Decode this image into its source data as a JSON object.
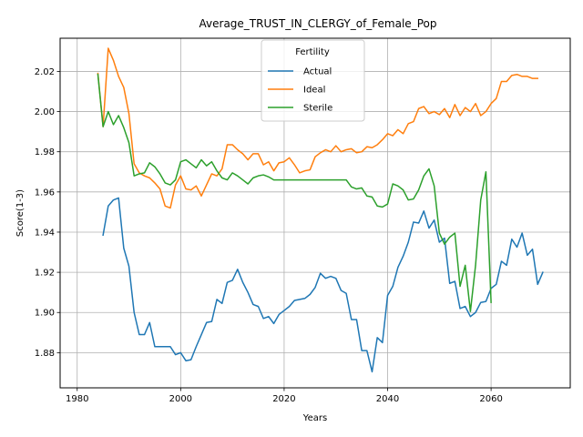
{
  "chart_data": {
    "type": "line",
    "title": "Average_TRUST_IN_CLERGY_of_Female_Pop",
    "xlabel": "Years",
    "ylabel": "Score(1-3)",
    "xlim": [
      1976.7,
      2075.3
    ],
    "ylim": [
      1.8625,
      2.0365
    ],
    "xticks": [
      1980,
      2000,
      2020,
      2040,
      2060
    ],
    "yticks": [
      1.88,
      1.9,
      1.92,
      1.94,
      1.96,
      1.98,
      2.0,
      2.02
    ],
    "ytick_labels": [
      "1.88",
      "1.90",
      "1.92",
      "1.94",
      "1.96",
      "1.98",
      "2.00",
      "2.02"
    ],
    "grid": true,
    "legend": {
      "title": "Fertility",
      "placement": "upper-center"
    },
    "series": [
      {
        "name": "Actual",
        "color": "#1f77b4",
        "start_year": 1985,
        "values": [
          1.9385,
          1.953,
          1.956,
          1.957,
          1.932,
          1.923,
          1.9,
          1.889,
          1.889,
          1.895,
          1.883,
          1.883,
          1.883,
          1.883,
          1.879,
          1.88,
          1.876,
          1.8765,
          1.883,
          1.889,
          1.895,
          1.8955,
          1.9065,
          1.9045,
          1.915,
          1.916,
          1.9215,
          1.915,
          1.91,
          1.904,
          1.903,
          1.897,
          1.898,
          1.8945,
          1.899,
          1.901,
          1.903,
          1.906,
          1.9065,
          1.907,
          1.909,
          1.9125,
          1.9195,
          1.917,
          1.918,
          1.917,
          1.911,
          1.9095,
          1.8965,
          1.8965,
          1.881,
          1.881,
          1.8705,
          1.8875,
          1.885,
          1.9085,
          1.913,
          1.9225,
          1.928,
          1.935,
          1.945,
          1.9445,
          1.9505,
          1.942,
          1.946,
          1.935,
          1.937,
          1.9145,
          1.9155,
          1.902,
          1.903,
          1.898,
          1.9,
          1.905,
          1.9055,
          1.912,
          1.914,
          1.9255,
          1.9235,
          1.9365,
          1.9325,
          1.9395,
          1.9285,
          1.9315,
          1.914,
          1.92
        ]
      },
      {
        "name": "Ideal",
        "color": "#ff7f0e",
        "start_year": 1984,
        "values": [
          2.019,
          1.9925,
          2.0315,
          2.0255,
          2.0175,
          2.012,
          1.999,
          1.974,
          1.9695,
          1.968,
          1.967,
          1.9645,
          1.9615,
          1.953,
          1.952,
          1.9635,
          1.968,
          1.9615,
          1.961,
          1.963,
          1.958,
          1.9635,
          1.969,
          1.968,
          1.9715,
          1.9835,
          1.9835,
          1.981,
          1.979,
          1.976,
          1.979,
          1.979,
          1.9735,
          1.975,
          1.9705,
          1.9745,
          1.975,
          1.977,
          1.9735,
          1.9695,
          1.9705,
          1.971,
          1.9775,
          1.9795,
          1.981,
          1.98,
          1.983,
          1.98,
          1.981,
          1.9815,
          1.9795,
          1.98,
          1.9825,
          1.982,
          1.9835,
          1.986,
          1.989,
          1.988,
          1.991,
          1.989,
          1.994,
          1.995,
          2.0015,
          2.0025,
          1.999,
          2.0,
          1.9985,
          2.0015,
          1.997,
          2.0035,
          1.998,
          2.002,
          2.0,
          2.004,
          1.998,
          2.0,
          2.004,
          2.0065,
          2.015,
          2.015,
          2.018,
          2.0185,
          2.0175,
          2.0175,
          2.0165,
          2.0165
        ]
      },
      {
        "name": "Sterile",
        "color": "#2ca02c",
        "start_year": 1984,
        "values": [
          2.0185,
          1.9925,
          2.0,
          1.9935,
          1.998,
          1.992,
          1.9845,
          1.968,
          1.969,
          1.9695,
          1.9745,
          1.9725,
          1.969,
          1.9645,
          1.9635,
          1.966,
          1.975,
          1.976,
          1.974,
          1.972,
          1.976,
          1.973,
          1.975,
          1.9705,
          1.967,
          1.966,
          1.9695,
          1.968,
          1.966,
          1.964,
          1.967,
          1.968,
          1.9685,
          1.9675,
          1.966,
          1.966,
          1.966,
          1.966,
          1.966,
          1.966,
          1.966,
          1.966,
          1.966,
          1.966,
          1.966,
          1.966,
          1.966,
          1.966,
          1.966,
          1.9625,
          1.9615,
          1.962,
          1.958,
          1.9575,
          1.953,
          1.9525,
          1.954,
          1.964,
          1.963,
          1.961,
          1.956,
          1.9565,
          1.961,
          1.968,
          1.9715,
          1.963,
          1.9395,
          1.934,
          1.9375,
          1.9395,
          1.913,
          1.9235,
          1.9005,
          1.9235,
          1.956,
          1.97,
          1.905
        ]
      }
    ]
  }
}
